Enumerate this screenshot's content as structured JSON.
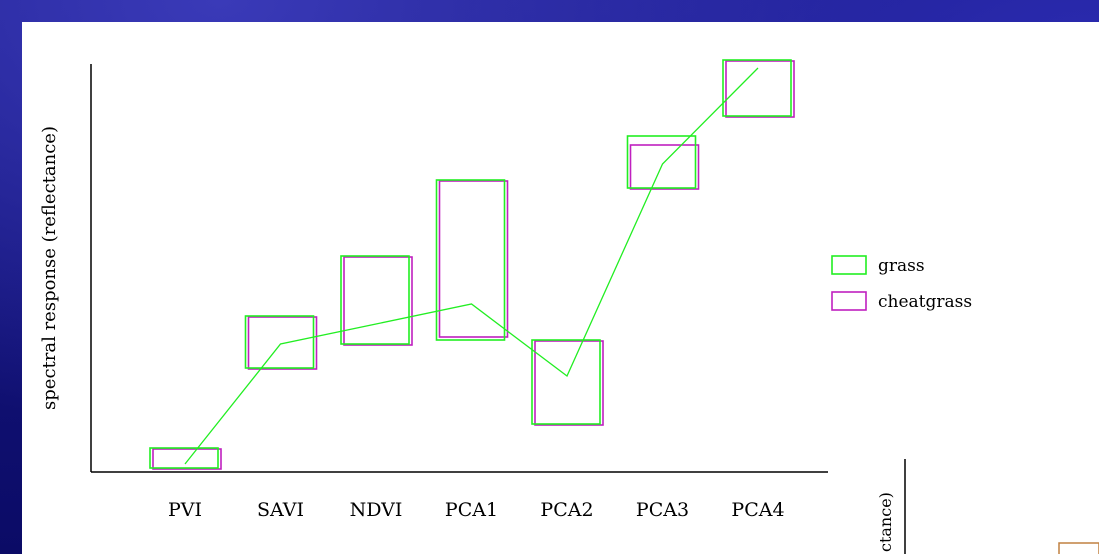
{
  "chart_data": {
    "type": "box-range",
    "categories": [
      "PVI",
      "SAVI",
      "NDVI",
      "PCA1",
      "PCA2",
      "PCA3",
      "PCA4"
    ],
    "ylabel": "spectral response (reflectance)",
    "xlabel": "",
    "ylim": [
      0,
      100
    ],
    "grid": false,
    "legend_position": "right",
    "series": [
      {
        "name": "grass",
        "color": "#22ee22",
        "ranges": [
          [
            1,
            6
          ],
          [
            26,
            39
          ],
          [
            32,
            54
          ],
          [
            33,
            73
          ],
          [
            12,
            33
          ],
          [
            71,
            84
          ],
          [
            89,
            103
          ]
        ]
      },
      {
        "name": "cheatgrass",
        "color": "#c020c0",
        "ranges": [
          [
            1,
            6
          ],
          [
            26,
            39
          ],
          [
            32,
            54
          ],
          [
            34,
            73
          ],
          [
            12,
            33
          ],
          [
            71,
            82
          ],
          [
            89,
            103
          ]
        ]
      }
    ],
    "line": {
      "color": "#22ee22",
      "values": [
        2,
        32,
        37,
        42,
        24,
        77,
        101
      ]
    }
  },
  "partial_overlay": {
    "text": "ctance)"
  }
}
